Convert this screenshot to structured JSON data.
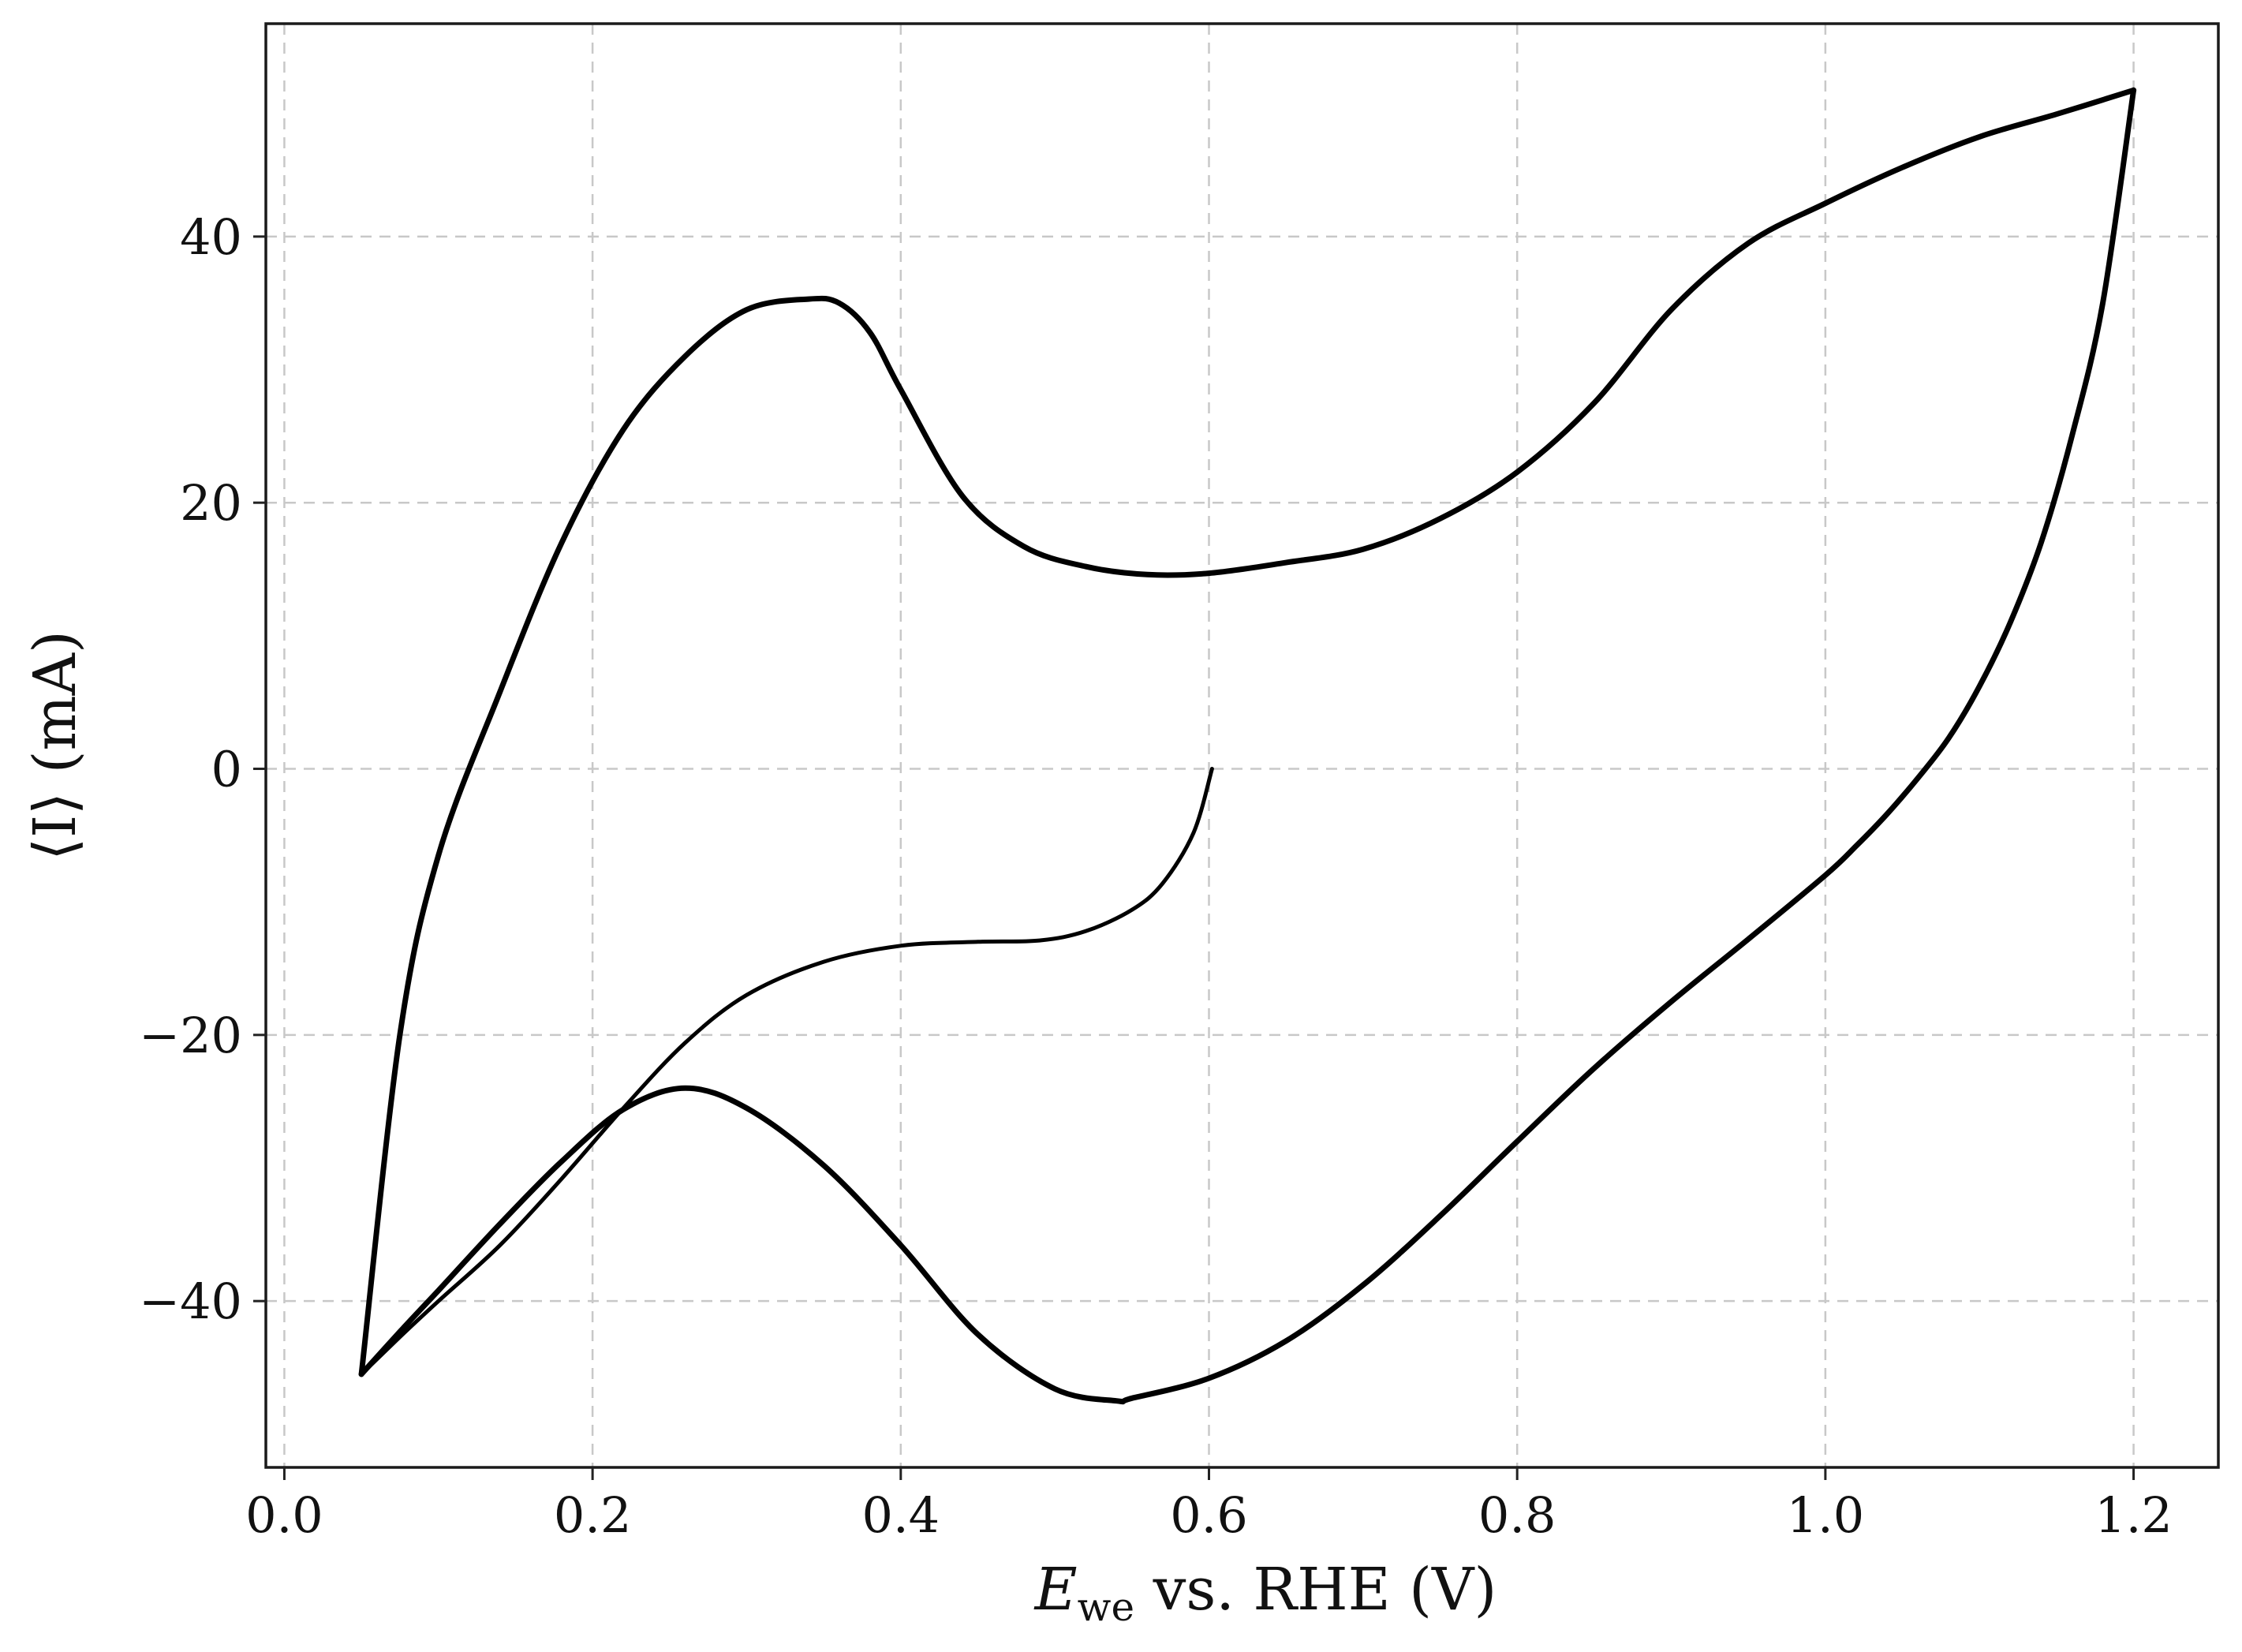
{
  "chart_data": {
    "type": "line",
    "title": "",
    "xlabel": {
      "main": "E",
      "sub": "we",
      "rest": " vs. RHE (V)"
    },
    "ylabel": "⟨I⟩ (mA)",
    "xlim": [
      -0.012,
      1.255
    ],
    "ylim": [
      -52.5,
      56.0
    ],
    "x_ticks": [
      0.0,
      0.2,
      0.4,
      0.6,
      0.8,
      1.0,
      1.2
    ],
    "x_tick_labels": [
      "0.0",
      "0.2",
      "0.4",
      "0.6",
      "0.8",
      "1.0",
      "1.2"
    ],
    "y_ticks": [
      -40,
      -20,
      0,
      20,
      40
    ],
    "y_tick_labels": [
      "−40",
      "−20",
      "0",
      "20",
      "40"
    ],
    "grid": true,
    "line_color": "#000000",
    "series": [
      {
        "x": [
          0.602,
          0.59,
          0.57,
          0.55,
          0.52,
          0.49,
          0.45,
          0.4,
          0.35,
          0.3,
          0.26,
          0.22,
          0.18,
          0.14,
          0.1,
          0.075,
          0.05
        ],
        "y": [
          0.0,
          -4.8,
          -8.6,
          -10.6,
          -12.2,
          -12.9,
          -13.0,
          -13.3,
          -14.5,
          -17.0,
          -20.6,
          -25.5,
          -30.8,
          -35.8,
          -40.0,
          -42.7,
          -45.5
        ]
      },
      {
        "x": [
          0.05,
          0.075,
          0.1,
          0.14,
          0.18,
          0.22,
          0.26,
          0.3,
          0.34,
          0.36,
          0.38,
          0.4,
          0.44,
          0.48,
          0.52,
          0.56,
          0.6,
          0.65,
          0.7,
          0.75,
          0.8,
          0.85,
          0.9,
          0.95,
          1.0,
          1.05,
          1.1,
          1.15,
          1.2
        ],
        "y": [
          -45.5,
          -20.0,
          -6.5,
          5.8,
          17.0,
          25.5,
          31.0,
          34.5,
          35.3,
          35.0,
          32.8,
          28.5,
          20.5,
          16.7,
          15.2,
          14.6,
          14.7,
          15.5,
          16.5,
          18.8,
          22.3,
          27.5,
          34.5,
          39.5,
          42.5,
          45.2,
          47.5,
          49.2,
          51.0
        ]
      },
      {
        "x": [
          1.2,
          1.18,
          1.16,
          1.14,
          1.12,
          1.1,
          1.08,
          1.06,
          1.04,
          1.02,
          1.0,
          0.95,
          0.9,
          0.85,
          0.8,
          0.75,
          0.7,
          0.65,
          0.6,
          0.55,
          0.54,
          0.5,
          0.45,
          0.4,
          0.35,
          0.3,
          0.26,
          0.22,
          0.18,
          0.14,
          0.1,
          0.075,
          0.05
        ],
        "y": [
          51.0,
          35.0,
          25.0,
          17.0,
          11.0,
          6.2,
          2.3,
          -0.7,
          -3.4,
          -5.8,
          -8.0,
          -12.8,
          -17.5,
          -22.5,
          -28.0,
          -33.6,
          -38.8,
          -43.0,
          -45.8,
          -47.3,
          -47.5,
          -46.6,
          -42.5,
          -35.8,
          -29.8,
          -25.5,
          -24.0,
          -25.6,
          -29.5,
          -34.2,
          -39.2,
          -42.3,
          -45.5
        ]
      }
    ]
  }
}
